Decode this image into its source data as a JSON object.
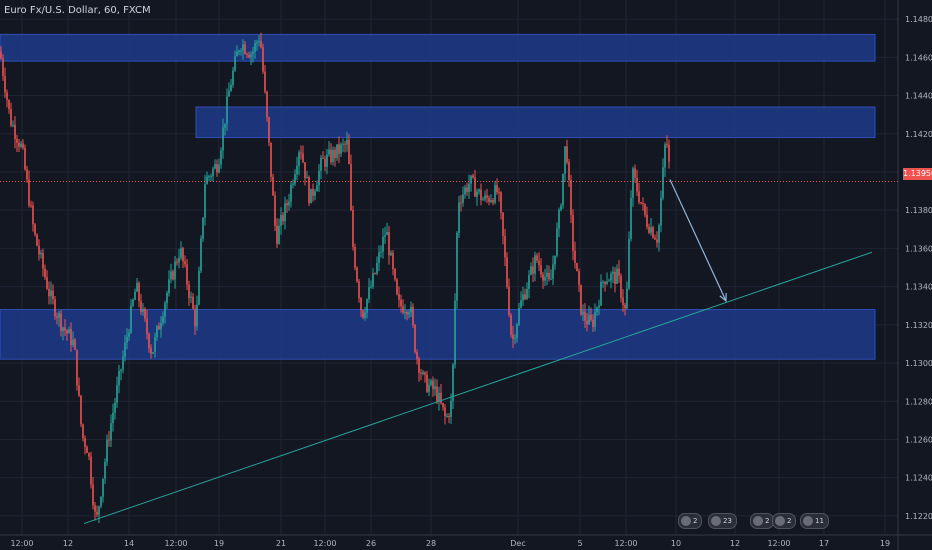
{
  "header": {
    "title": "Euro Fx/U.S. Dollar, 60, FXCM"
  },
  "colors": {
    "background": "#131722",
    "up": "#26a69a",
    "down": "#ef5350",
    "zone": "#1e3a8a",
    "trendline": "#26a69a",
    "arrow": "#8fb3d9",
    "grid": "#1f2533",
    "axis_text": "#b2b5be"
  },
  "chart_data": {
    "type": "candlestick",
    "title": "Euro Fx/U.S. Dollar, 60, FXCM",
    "current_price": "1.13950",
    "ylim": [
      1.121,
      1.149
    ],
    "y_ticks": [
      "1.14800",
      "1.14600",
      "1.14400",
      "1.14200",
      "1.14000",
      "1.13800",
      "1.13600",
      "1.13400",
      "1.13200",
      "1.13000",
      "1.12800",
      "1.12600",
      "1.12400",
      "1.12200"
    ],
    "x_ticks": [
      "12:00",
      "12",
      "14",
      "12:00",
      "19",
      "21",
      "12:00",
      "26",
      "28",
      "Dec",
      "5",
      "12:00",
      "10",
      "12",
      "12:00",
      "17",
      "19"
    ],
    "price_path": [
      [
        0,
        1.1463
      ],
      [
        10,
        1.1428
      ],
      [
        22,
        1.1412
      ],
      [
        34,
        1.1368
      ],
      [
        50,
        1.1335
      ],
      [
        62,
        1.132
      ],
      [
        74,
        1.131
      ],
      [
        82,
        1.1262
      ],
      [
        88,
        1.1255
      ],
      [
        96,
        1.1215
      ],
      [
        108,
        1.126
      ],
      [
        122,
        1.13
      ],
      [
        136,
        1.134
      ],
      [
        152,
        1.1305
      ],
      [
        166,
        1.1335
      ],
      [
        180,
        1.136
      ],
      [
        196,
        1.132
      ],
      [
        205,
        1.1395
      ],
      [
        218,
        1.1405
      ],
      [
        230,
        1.1445
      ],
      [
        240,
        1.1468
      ],
      [
        252,
        1.1462
      ],
      [
        260,
        1.1472
      ],
      [
        268,
        1.142
      ],
      [
        276,
        1.1365
      ],
      [
        288,
        1.1385
      ],
      [
        300,
        1.1415
      ],
      [
        310,
        1.1385
      ],
      [
        322,
        1.1405
      ],
      [
        336,
        1.141
      ],
      [
        348,
        1.1415
      ],
      [
        352,
        1.1365
      ],
      [
        362,
        1.1325
      ],
      [
        374,
        1.1345
      ],
      [
        386,
        1.137
      ],
      [
        398,
        1.133
      ],
      [
        410,
        1.133
      ],
      [
        416,
        1.1305
      ],
      [
        424,
        1.129
      ],
      [
        436,
        1.1285
      ],
      [
        446,
        1.127
      ],
      [
        452,
        1.128
      ],
      [
        458,
        1.1385
      ],
      [
        470,
        1.1395
      ],
      [
        484,
        1.1385
      ],
      [
        498,
        1.139
      ],
      [
        504,
        1.136
      ],
      [
        512,
        1.131
      ],
      [
        520,
        1.133
      ],
      [
        536,
        1.1355
      ],
      [
        550,
        1.134
      ],
      [
        560,
        1.138
      ],
      [
        566,
        1.1418
      ],
      [
        572,
        1.1365
      ],
      [
        582,
        1.1325
      ],
      [
        592,
        1.132
      ],
      [
        604,
        1.1345
      ],
      [
        618,
        1.1345
      ],
      [
        626,
        1.1325
      ],
      [
        632,
        1.14
      ],
      [
        646,
        1.1375
      ],
      [
        658,
        1.1365
      ],
      [
        666,
        1.142
      ],
      [
        670,
        1.1398
      ]
    ],
    "zones": [
      {
        "from": 1.1458,
        "to": 1.1472
      },
      {
        "from": 1.1418,
        "to": 1.1434
      },
      {
        "from": 1.1302,
        "to": 1.1328
      }
    ],
    "trendline": {
      "from": [
        0,
        1.1216
      ],
      "to": [
        872,
        1.1358
      ]
    },
    "projection_arrow": {
      "from": [
        670,
        1.1396
      ],
      "to": [
        726,
        1.13325
      ]
    }
  },
  "events": [
    {
      "label": "2",
      "x": 678
    },
    {
      "label": "23",
      "x": 708
    },
    {
      "label": "2",
      "x": 750
    },
    {
      "label": "2",
      "x": 772
    },
    {
      "label": "11",
      "x": 800
    }
  ]
}
